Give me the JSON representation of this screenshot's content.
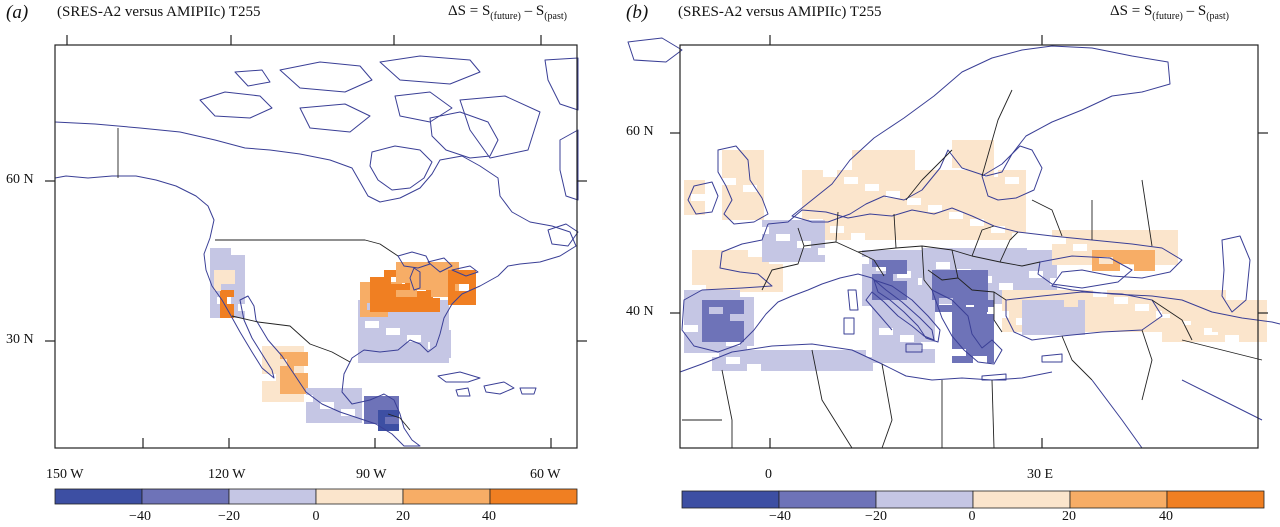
{
  "colors": {
    "scale": [
      "#3d4fa3",
      "#6e73b8",
      "#c5c6e4",
      "#fbe5cc",
      "#f7ad66",
      "#f07f22"
    ],
    "coast": "#3a3f96",
    "border": "#222222"
  },
  "panels": [
    {
      "label": "(a)",
      "subtitle": "(SRES-A2 versus AMIPIIc) T255",
      "formula": {
        "delta": "ΔS = S",
        "future": "(future)",
        "minus": " – S",
        "past": "(past)"
      },
      "lon_ticks": [
        "150 W",
        "120 W",
        "90 W",
        "60 W"
      ],
      "lat_ticks": [
        "60 N",
        "30 N"
      ],
      "colorbar_ticks": [
        "−40",
        "−20",
        "0",
        "20",
        "40"
      ]
    },
    {
      "label": "(b)",
      "subtitle": "(SRES-A2 versus AMIPIIc) T255",
      "formula": {
        "delta": "ΔS = S",
        "future": "(future)",
        "minus": " – S",
        "past": "(past)"
      },
      "lon_ticks": [
        "0",
        "30 E"
      ],
      "lat_ticks": [
        "60 N",
        "40 N"
      ],
      "colorbar_ticks": [
        "−40",
        "−20",
        "0",
        "20",
        "40"
      ]
    }
  ]
}
